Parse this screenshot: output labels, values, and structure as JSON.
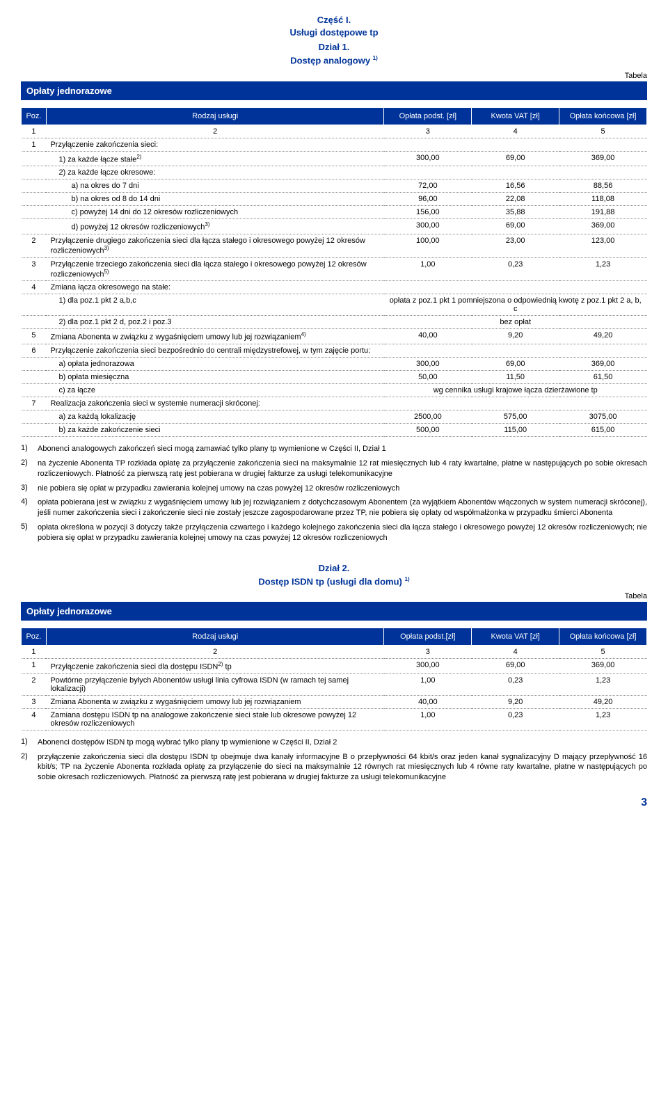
{
  "colors": {
    "brand": "#003399",
    "rule": "#888888",
    "bg": "#ffffff"
  },
  "header": {
    "part": "Część I.",
    "part_sub": "Usługi dostępowe tp",
    "section": "Dział 1.",
    "section_sub": "Dostęp analogowy ",
    "section_sup": "1)",
    "tabela": "Tabela"
  },
  "band1": "Opłaty jednorazowe",
  "t1_head": {
    "poz": "Poz.",
    "rodzaj": "Rodzaj usługi",
    "oplata": "Opłata podst. [zł]",
    "kwota": "Kwota VAT [zł]",
    "koncowa": "Opłata końcowa [zł]"
  },
  "t1_numrow": [
    "1",
    "2",
    "3",
    "4",
    "5"
  ],
  "t1": [
    {
      "n": "1",
      "d": "Przyłączenie zakończenia sieci:",
      "a": "",
      "b": "",
      "c": ""
    },
    {
      "n": "",
      "d": "1) za każde łącze stałe",
      "sup": "2)",
      "a": "300,00",
      "b": "69,00",
      "c": "369,00",
      "ind": 1
    },
    {
      "n": "",
      "d": "2) za każde łącze okresowe:",
      "a": "",
      "b": "",
      "c": "",
      "ind": 1
    },
    {
      "n": "",
      "d": "a) na okres do 7 dni",
      "a": "72,00",
      "b": "16,56",
      "c": "88,56",
      "ind": 2
    },
    {
      "n": "",
      "d": "b) na okres od 8 do 14 dni",
      "a": "96,00",
      "b": "22,08",
      "c": "118,08",
      "ind": 2
    },
    {
      "n": "",
      "d": "c) powyżej 14 dni do 12 okresów rozliczeniowych",
      "a": "156,00",
      "b": "35,88",
      "c": "191,88",
      "ind": 2
    },
    {
      "n": "",
      "d": "d) powyżej 12 okresów rozliczeniowych",
      "sup": "3)",
      "a": "300,00",
      "b": "69,00",
      "c": "369,00",
      "ind": 2
    },
    {
      "n": "2",
      "d": "Przyłączenie drugiego zakończenia sieci dla łącza stałego i okresowego powyżej 12 okresów rozliczeniowych",
      "sup": "3)",
      "a": "100,00",
      "b": "23,00",
      "c": "123,00"
    },
    {
      "n": "3",
      "d": "Przyłączenie trzeciego zakończenia sieci dla łącza stałego i okresowego powyżej 12 okresów rozliczeniowych",
      "sup": "5)",
      "a": "1,00",
      "b": "0,23",
      "c": "1,23"
    },
    {
      "n": "4",
      "d": "Zmiana łącza okresowego na stałe:",
      "a": "",
      "b": "",
      "c": ""
    },
    {
      "n": "",
      "d": "1) dla poz.1 pkt 2 a,b,c",
      "span": "opłata z poz.1 pkt 1 pomniejszona o odpowiednią kwotę z poz.1 pkt 2 a, b, c",
      "ind": 1
    },
    {
      "n": "",
      "d": "2) dla poz.1 pkt 2 d, poz.2 i poz.3",
      "span": "bez opłat",
      "ind": 1
    },
    {
      "n": "5",
      "d": "Zmiana Abonenta w związku z wygaśnięciem umowy lub jej rozwiązaniem",
      "sup": "4)",
      "a": "40,00",
      "b": "9,20",
      "c": "49,20",
      "just": true
    },
    {
      "n": "6",
      "d": "Przyłączenie zakończenia sieci bezpośrednio do centrali międzystrefowej, w tym zajęcie portu:",
      "a": "",
      "b": "",
      "c": "",
      "just": true
    },
    {
      "n": "",
      "d": "a) opłata jednorazowa",
      "a": "300,00",
      "b": "69,00",
      "c": "369,00",
      "ind": 1
    },
    {
      "n": "",
      "d": "b) opłata miesięczna",
      "a": "50,00",
      "b": "11,50",
      "c": "61,50",
      "ind": 1
    },
    {
      "n": "",
      "d": "c) za łącze",
      "span": "wg cennika usługi krajowe łącza dzierżawione tp",
      "ind": 1
    },
    {
      "n": "7",
      "d": "Realizacja zakończenia sieci w systemie numeracji skróconej:",
      "a": "",
      "b": "",
      "c": ""
    },
    {
      "n": "",
      "d": "a) za każdą lokalizację",
      "a": "2500,00",
      "b": "575,00",
      "c": "3075,00",
      "ind": 1
    },
    {
      "n": "",
      "d": "b) za każde zakończenie sieci",
      "a": "500,00",
      "b": "115,00",
      "c": "615,00",
      "ind": 1
    }
  ],
  "fn1": [
    {
      "n": "1)",
      "t": "Abonenci analogowych zakończeń sieci mogą zamawiać tylko plany tp wymienione w Części II, Dział 1"
    },
    {
      "n": "2)",
      "t": "na życzenie Abonenta TP rozkłada opłatę za przyłączenie zakończenia sieci na maksymalnie 12 rat miesięcznych lub 4 raty kwartalne, płatne w następujących po sobie okresach rozliczeniowych. Płatność za pierwszą ratę jest pobierana w drugiej fakturze za usługi telekomunikacyjne"
    },
    {
      "n": "3)",
      "t": "nie pobiera się opłat w przypadku zawierania kolejnej umowy na czas powyżej 12 okresów rozliczeniowych"
    },
    {
      "n": "4)",
      "t": "opłata pobierana jest w związku z wygaśnięciem umowy lub jej rozwiązaniem z dotychczasowym Abonentem (za wyjątkiem Abonentów włączonych w system numeracji skróconej), jeśli numer zakończenia sieci i zakończenie sieci nie zostały jeszcze zagospodarowane przez TP, nie pobiera się opłaty od współmałżonka w przypadku śmierci Abonenta"
    },
    {
      "n": "5)",
      "t": "opłata określona w pozycji 3 dotyczy także przyłączenia czwartego i każdego kolejnego zakończenia sieci dla łącza stałego i okresowego powyżej 12 okresów rozliczeniowych; nie pobiera się opłat w przypadku zawierania kolejnej umowy na czas powyżej 12 okresów rozliczeniowych"
    }
  ],
  "header2": {
    "section": "Dział 2.",
    "section_sub": "Dostęp ISDN tp (usługi dla domu) ",
    "section_sup": "1)",
    "tabela": "Tabela"
  },
  "band2": "Opłaty jednorazowe",
  "t2_head": {
    "poz": "Poz.",
    "rodzaj": "Rodzaj usługi",
    "oplata": "Opłata podst.[zł]",
    "kwota": "Kwota VAT [zł]",
    "koncowa": "Opłata końcowa [zł]"
  },
  "t2_numrow": [
    "1",
    "2",
    "3",
    "4",
    "5"
  ],
  "t2": [
    {
      "n": "1",
      "d": "Przyłączenie zakończenia sieci dla dostępu ISDN",
      "sup": "2)",
      "tail": " tp",
      "a": "300,00",
      "b": "69,00",
      "c": "369,00"
    },
    {
      "n": "2",
      "d": "Powtórne przyłączenie byłych Abonentów usługi linia cyfrowa ISDN (w ramach tej samej lokalizacji)",
      "a": "1,00",
      "b": "0,23",
      "c": "1,23"
    },
    {
      "n": "3",
      "d": "Zmiana Abonenta w związku z wygaśnięciem umowy lub jej rozwiązaniem",
      "a": "40,00",
      "b": "9,20",
      "c": "49,20"
    },
    {
      "n": "4",
      "d": "Zamiana dostępu ISDN tp na analogowe zakończenie sieci stałe lub okresowe powyżej 12 okresów rozliczeniowych",
      "a": "1,00",
      "b": "0,23",
      "c": "1,23"
    }
  ],
  "fn2": [
    {
      "n": "1)",
      "t": "Abonenci dostępów ISDN tp mogą wybrać tylko plany tp wymienione w Części II, Dział 2"
    },
    {
      "n": "2)",
      "t": "przyłączenie zakończenia sieci dla dostępu ISDN tp obejmuje dwa kanały informacyjne B o przepływności 64 kbit/s oraz jeden kanał sygnalizacyjny D mający przepływność 16 kbit/s; TP na życzenie Abonenta rozkłada opłatę za przyłączenie do sieci na maksymalnie 12 równych rat miesięcznych lub 4 równe raty kwartalne, płatne w następujących po sobie okresach rozliczeniowych. Płatność za pierwszą ratę jest pobierana w drugiej fakturze za usługi telekomunikacyjne"
    }
  ],
  "pagenum": "3"
}
